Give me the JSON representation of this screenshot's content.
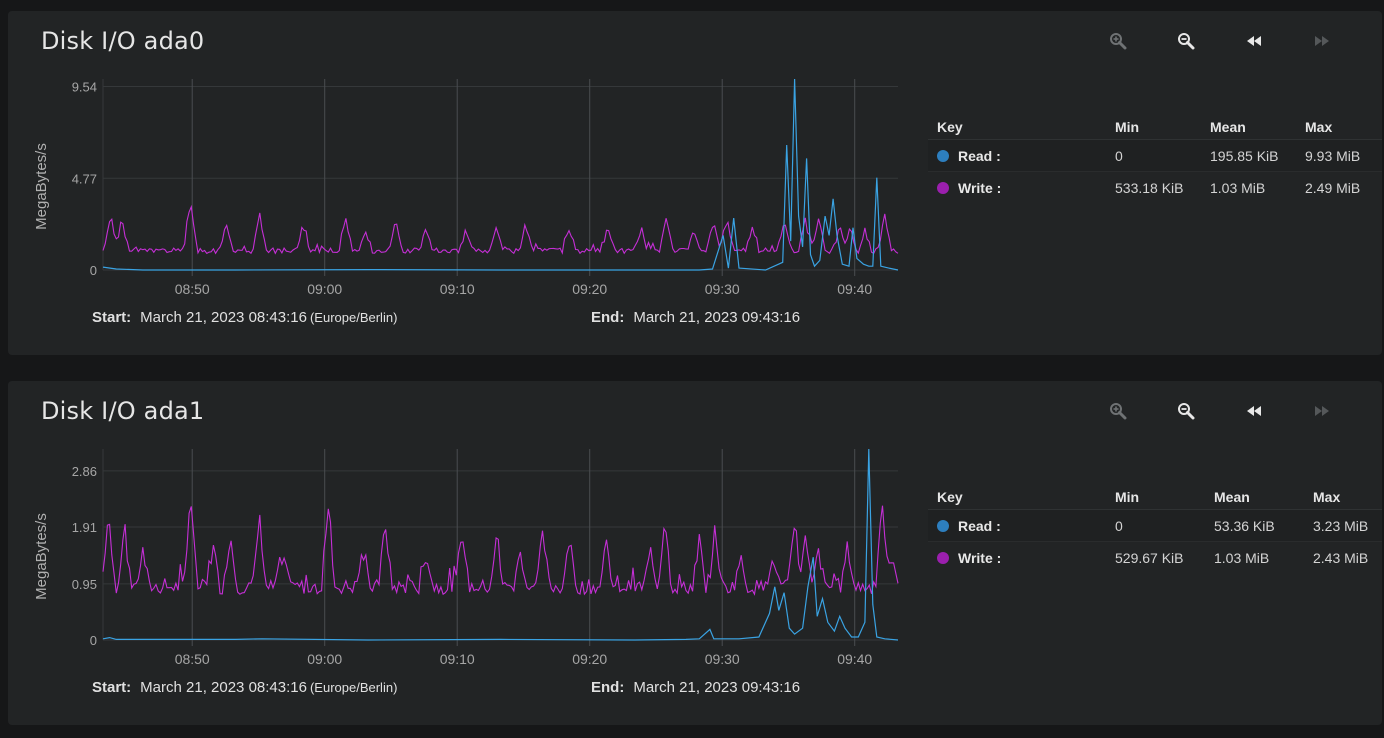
{
  "labels": {
    "start": "Start:",
    "end": "End:",
    "key": "Key",
    "min": "Min",
    "mean": "Mean",
    "max": "Max"
  },
  "colors": {
    "read": "#2d7fbf",
    "read_line": "#3aa3e3",
    "write": "#9b1fae",
    "write_line": "#c52fd6",
    "grid": "#35383a",
    "vgrid": "#4a4d50"
  },
  "toolbar": {
    "icons": [
      "zoom-in-icon",
      "zoom-out-icon",
      "step-back-icon",
      "step-forward-icon"
    ]
  },
  "cards": [
    {
      "title": "Disk I/O ada0",
      "start": "March 21, 2023 08:43:16",
      "start_tz": "(Europe/Berlin)",
      "end": "March 21, 2023 09:43:16",
      "legend": [
        {
          "name": "Read :",
          "min": "0",
          "mean": "195.85 KiB",
          "max": "9.93 MiB"
        },
        {
          "name": "Write :",
          "min": "533.18 KiB",
          "mean": "1.03 MiB",
          "max": "2.49 MiB"
        }
      ],
      "chart_data": {
        "type": "line",
        "ylabel": "MegaBytes/s",
        "yticks": [
          "0",
          "4.77",
          "9.54"
        ],
        "ymax": 9.93,
        "ylim": [
          0,
          9.93
        ],
        "xticks": [
          "08:50",
          "09:00",
          "09:10",
          "09:20",
          "09:30",
          "09:40"
        ],
        "xrange_minutes": [
          0,
          60
        ],
        "series": [
          {
            "name": "Read",
            "points": [
              [
                0,
                0.15
              ],
              [
                1,
                0.05
              ],
              [
                3,
                0
              ],
              [
                10,
                0
              ],
              [
                20,
                0.02
              ],
              [
                30,
                0
              ],
              [
                40,
                0
              ],
              [
                45,
                0
              ],
              [
                46,
                0.05
              ],
              [
                46.8,
                1.8
              ],
              [
                47.2,
                0.1
              ],
              [
                47.6,
                2.7
              ],
              [
                48,
                0.1
              ],
              [
                50,
                0
              ],
              [
                51.3,
                0.4
              ],
              [
                51.6,
                6.5
              ],
              [
                51.9,
                1.5
              ],
              [
                52.2,
                9.93
              ],
              [
                52.5,
                2.8
              ],
              [
                52.8,
                1.2
              ],
              [
                53.1,
                5.8
              ],
              [
                53.4,
                0.8
              ],
              [
                53.7,
                0.2
              ],
              [
                54.1,
                0.5
              ],
              [
                54.5,
                2.8
              ],
              [
                54.8,
                1.8
              ],
              [
                55.1,
                3.7
              ],
              [
                55.4,
                1.8
              ],
              [
                55.8,
                0.3
              ],
              [
                56.3,
                0.2
              ],
              [
                56.6,
                2.2
              ],
              [
                56.9,
                0.6
              ],
              [
                57.4,
                0.3
              ],
              [
                57.8,
                0.2
              ],
              [
                58.1,
                0.2
              ],
              [
                58.4,
                4.8
              ],
              [
                58.7,
                0.2
              ],
              [
                59.3,
                0.1
              ],
              [
                60,
                0
              ]
            ]
          },
          {
            "name": "Write",
            "seed": 1,
            "base": 1.0,
            "spikes": [
              [
                0.6,
                1.8
              ],
              [
                1.4,
                1.6
              ],
              [
                6.6,
                2.5
              ],
              [
                9.3,
                1.5
              ],
              [
                11.8,
                1.9
              ],
              [
                15.1,
                1.3
              ],
              [
                18.3,
                1.7
              ],
              [
                19.8,
                1.0
              ],
              [
                22.1,
                1.6
              ],
              [
                24.4,
                1.2
              ],
              [
                27.4,
                1.1
              ],
              [
                29.7,
                1.3
              ],
              [
                31.9,
                1.3
              ],
              [
                35.2,
                1.2
              ],
              [
                38.1,
                1.2
              ],
              [
                40.6,
                1.1
              ],
              [
                42.5,
                1.8
              ],
              [
                44.6,
                1.1
              ],
              [
                46.1,
                1.4
              ],
              [
                47.1,
                1.6
              ],
              [
                49.0,
                1.1
              ],
              [
                51.4,
                1.6
              ],
              [
                53.0,
                1.6
              ],
              [
                54.0,
                1.7
              ],
              [
                55.6,
                1.2
              ],
              [
                56.4,
                1.2
              ],
              [
                57.5,
                1.1
              ],
              [
                59.0,
                1.8
              ]
            ]
          }
        ]
      }
    },
    {
      "title": "Disk I/O ada1",
      "start": "March 21, 2023 08:43:16",
      "start_tz": "(Europe/Berlin)",
      "end": "March 21, 2023 09:43:16",
      "legend": [
        {
          "name": "Read :",
          "min": "0",
          "mean": "53.36 KiB",
          "max": "3.23 MiB"
        },
        {
          "name": "Write :",
          "min": "529.67 KiB",
          "mean": "1.03 MiB",
          "max": "2.43 MiB"
        }
      ],
      "chart_data": {
        "type": "line",
        "ylabel": "MegaBytes/s",
        "yticks": [
          "0",
          "0.95",
          "1.91",
          "2.86"
        ],
        "ymax": 3.23,
        "ylim": [
          0,
          3.23
        ],
        "xticks": [
          "08:50",
          "09:00",
          "09:10",
          "09:20",
          "09:30",
          "09:40"
        ],
        "xrange_minutes": [
          0,
          60
        ],
        "series": [
          {
            "name": "Read",
            "points": [
              [
                0,
                0.02
              ],
              [
                0.5,
                0.04
              ],
              [
                1,
                0.01
              ],
              [
                10,
                0.01
              ],
              [
                12,
                0.02
              ],
              [
                20,
                0
              ],
              [
                30,
                0.01
              ],
              [
                40,
                0
              ],
              [
                44,
                0.01
              ],
              [
                45,
                0.02
              ],
              [
                45.8,
                0.18
              ],
              [
                46.1,
                0.02
              ],
              [
                48,
                0.02
              ],
              [
                49.5,
                0.05
              ],
              [
                50.3,
                0.45
              ],
              [
                50.7,
                0.9
              ],
              [
                51.0,
                0.5
              ],
              [
                51.4,
                0.8
              ],
              [
                51.8,
                0.2
              ],
              [
                52.2,
                0.1
              ],
              [
                52.8,
                0.2
              ],
              [
                53.2,
                0.9
              ],
              [
                53.6,
                1.4
              ],
              [
                53.9,
                0.4
              ],
              [
                54.3,
                0.7
              ],
              [
                54.7,
                0.3
              ],
              [
                55.2,
                0.15
              ],
              [
                55.6,
                0.4
              ],
              [
                56.0,
                0.2
              ],
              [
                56.5,
                0.05
              ],
              [
                57.0,
                0.05
              ],
              [
                57.5,
                0.3
              ],
              [
                57.8,
                3.23
              ],
              [
                58.1,
                0.6
              ],
              [
                58.4,
                0.05
              ],
              [
                59,
                0.02
              ],
              [
                60,
                0
              ]
            ]
          },
          {
            "name": "Write",
            "seed": 7,
            "base": 0.9,
            "spikes": [
              [
                0.4,
                1.2
              ],
              [
                1.6,
                1.0
              ],
              [
                3.0,
                0.6
              ],
              [
                6.6,
                1.6
              ],
              [
                8.3,
                0.7
              ],
              [
                9.6,
                0.9
              ],
              [
                11.8,
                1.2
              ],
              [
                13.6,
                0.5
              ],
              [
                17.0,
                1.4
              ],
              [
                19.6,
                0.6
              ],
              [
                21.3,
                1.1
              ],
              [
                24.4,
                0.6
              ],
              [
                27.1,
                1.0
              ],
              [
                29.7,
                0.8
              ],
              [
                31.5,
                0.6
              ],
              [
                33.2,
                0.9
              ],
              [
                35.2,
                0.8
              ],
              [
                38.0,
                0.7
              ],
              [
                41.3,
                0.6
              ],
              [
                42.4,
                1.2
              ],
              [
                45.0,
                0.6
              ],
              [
                46.2,
                1.0
              ],
              [
                48.1,
                0.5
              ],
              [
                50.6,
                0.5
              ],
              [
                52.2,
                1.1
              ],
              [
                53.0,
                0.8
              ],
              [
                54.0,
                0.6
              ],
              [
                56.2,
                0.7
              ],
              [
                58.8,
                1.3
              ],
              [
                59.6,
                0.5
              ]
            ]
          }
        ]
      }
    }
  ]
}
